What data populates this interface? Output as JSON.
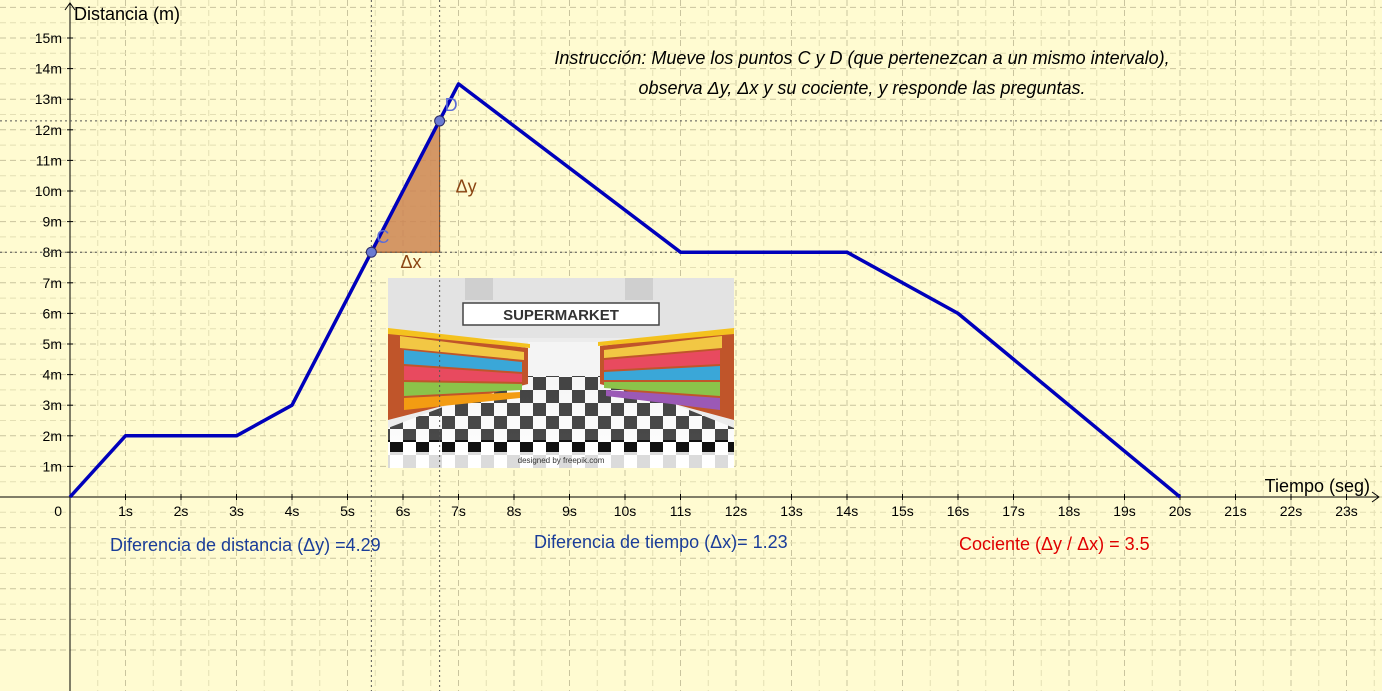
{
  "chart_data": {
    "type": "line",
    "ylabel": "Distancia (m)",
    "xlabel": "Tiempo (seg)",
    "xlim": [
      0,
      23.9
    ],
    "ylim": [
      0,
      15.9
    ],
    "origin_label": "0",
    "x_ticks": [
      "1s",
      "2s",
      "3s",
      "4s",
      "5s",
      "6s",
      "7s",
      "8s",
      "9s",
      "10s",
      "11s",
      "12s",
      "13s",
      "14s",
      "15s",
      "16s",
      "17s",
      "18s",
      "19s",
      "20s",
      "21s",
      "22s",
      "23s"
    ],
    "y_ticks": [
      "1m",
      "2m",
      "3m",
      "4m",
      "5m",
      "6m",
      "7m",
      "8m",
      "9m",
      "10m",
      "11m",
      "12m",
      "13m",
      "14m",
      "15m"
    ],
    "grid": true,
    "series": [
      {
        "x": [
          0,
          1,
          3,
          4,
          7,
          11,
          14,
          16,
          20
        ],
        "y": [
          0,
          2,
          2,
          3,
          13.5,
          8,
          8,
          6,
          0
        ],
        "color": "#0000bb"
      }
    ],
    "points": [
      {
        "label": "C",
        "x": 5.43,
        "y": 8.0
      },
      {
        "label": "D",
        "x": 6.66,
        "y": 12.29
      }
    ],
    "triangle_labels": {
      "dy": "Δy",
      "dx": "Δx"
    },
    "triangle_color": "#cd8552",
    "line_color": "#0000bb"
  },
  "instruction": {
    "line1": "Instrucción: Mueve los puntos C y D (que pertenezcan a un mismo intervalo),",
    "line2": "observa Δy, Δx y su cociente, y responde las preguntas."
  },
  "readouts": {
    "dy": "Diferencia de distancia (Δy) =4.29",
    "dx": "Diferencia de tiempo (Δx)= 1.23",
    "quotient": "Cociente (Δy / Δx) = 3.5"
  },
  "image": {
    "sign": "SUPERMARKET",
    "credit": "designed by freepik.com"
  }
}
